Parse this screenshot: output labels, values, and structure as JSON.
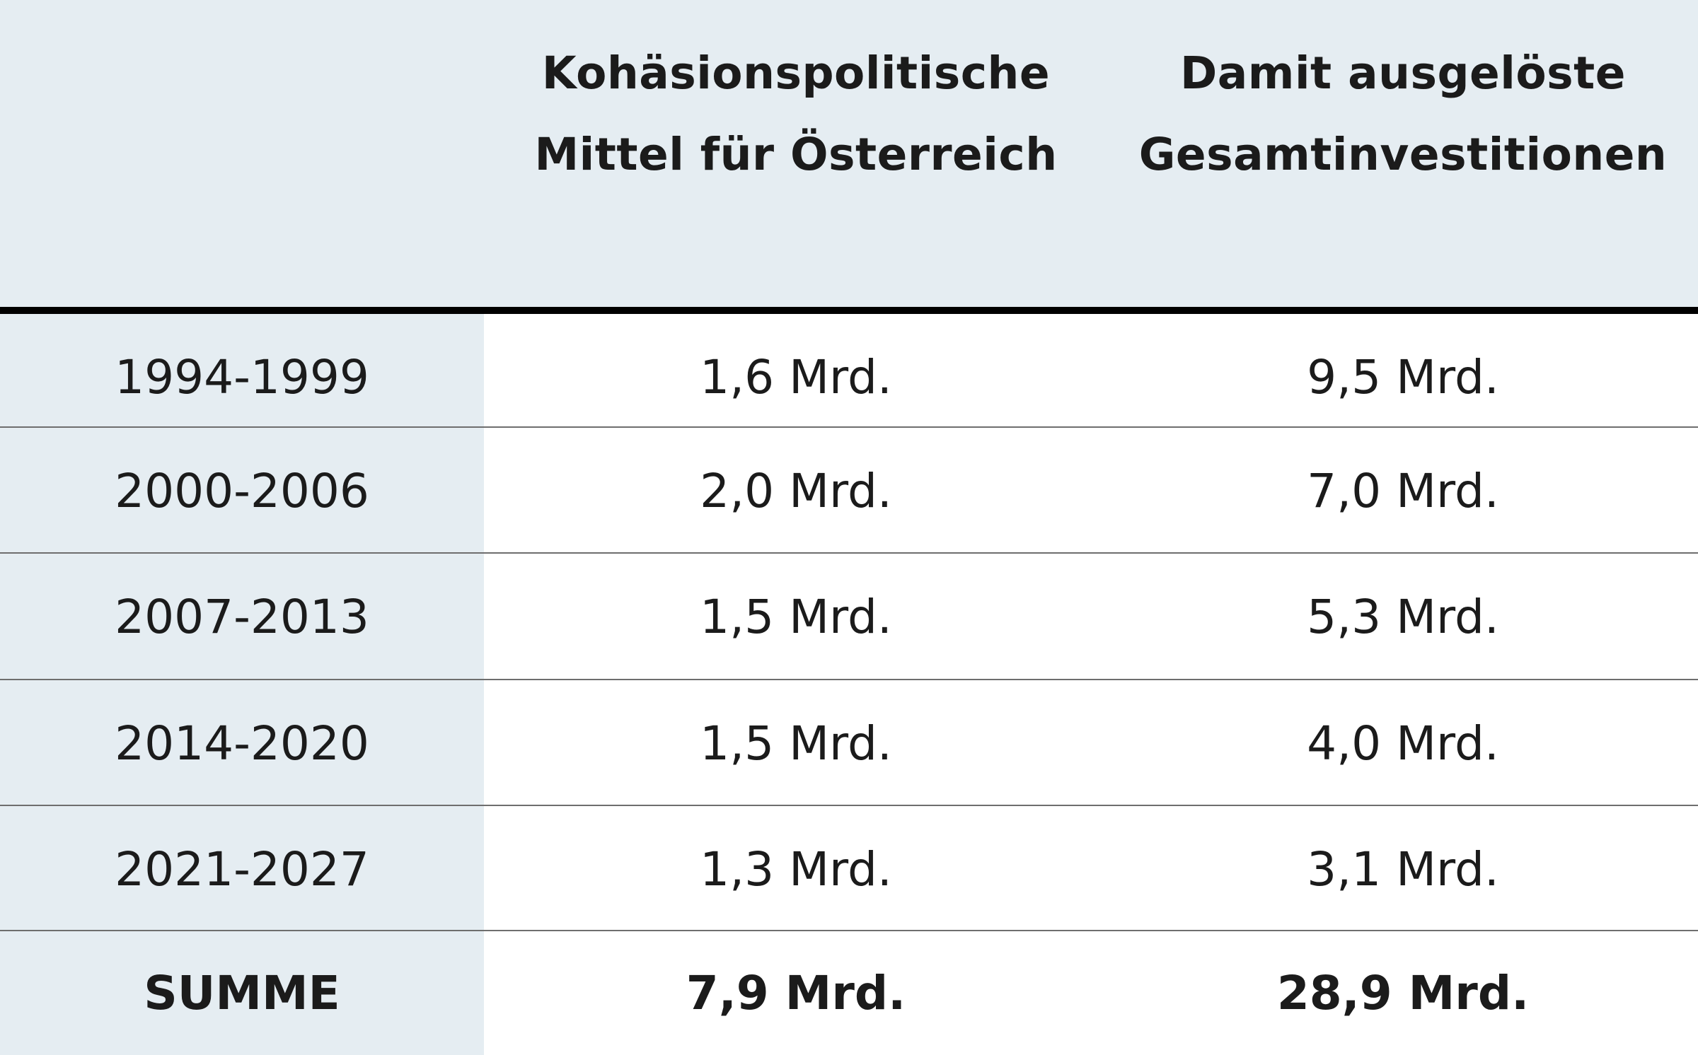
{
  "table": {
    "header": {
      "col0": "",
      "col1_line1": "Kohäsionspolitische",
      "col1_line2": "Mittel für Österreich",
      "col2_line1": "Damit ausgelöste",
      "col2_line2": "Gesamtinvestitionen"
    },
    "rows": [
      {
        "period": "1994-1999",
        "funds": "1,6 Mrd.",
        "investments": "9,5 Mrd."
      },
      {
        "period": "2000-2006",
        "funds": "2,0 Mrd.",
        "investments": "7,0 Mrd."
      },
      {
        "period": "2007-2013",
        "funds": "1,5 Mrd.",
        "investments": "5,3 Mrd."
      },
      {
        "period": "2014-2020",
        "funds": "1,5 Mrd.",
        "investments": "4,0 Mrd."
      },
      {
        "period": "2021-2027",
        "funds": "1,3 Mrd.",
        "investments": "3,1 Mrd."
      }
    ],
    "total": {
      "label": "SUMME",
      "funds": "7,9 Mrd.",
      "investments": "28,9 Mrd."
    }
  },
  "colors": {
    "shade": "#e5edf2",
    "rule": "#000000",
    "divider": "#6e6e6e",
    "text": "#1b1b1b"
  }
}
